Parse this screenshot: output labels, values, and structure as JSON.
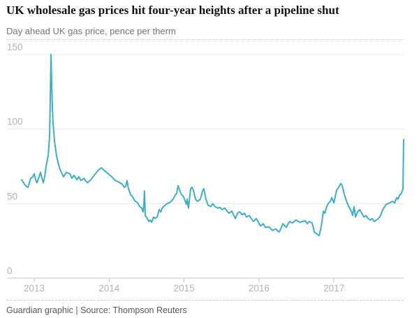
{
  "header": {
    "title": "UK wholesale gas prices hit four-year heights after a pipeline shut",
    "subtitle": "Day ahead UK gas price, pence per therm"
  },
  "footer": {
    "source": "Guardian graphic | Source: Thompson Reuters"
  },
  "colors": {
    "line": "#3cafc8",
    "title": "#121212",
    "subtitle": "#767676",
    "axis_label": "#b3b3b3",
    "gridline": "#ebebeb",
    "axis_line": "#c6c6c6",
    "source_text": "#595959"
  },
  "chart_data": {
    "type": "line",
    "title": "UK wholesale gas prices hit four-year heights after a pipeline shut",
    "subtitle": "Day ahead UK gas price, pence per therm",
    "series_name": "Day ahead UK gas price",
    "unit": "pence per therm",
    "x_ticks": [
      2013,
      2014,
      2015,
      2016,
      2017
    ],
    "y_ticks": [
      0,
      50,
      100,
      150
    ],
    "xlim": [
      2012.82,
      2017.97
    ],
    "ylim": [
      0,
      155
    ],
    "grid": "horizontal",
    "legend": "none",
    "points": [
      [
        2012.832,
        66
      ],
      [
        2012.87,
        63
      ],
      [
        2012.897,
        61.5
      ],
      [
        2012.916,
        61
      ],
      [
        2012.953,
        67
      ],
      [
        2012.981,
        68
      ],
      [
        2013.0,
        70
      ],
      [
        2013.019,
        66
      ],
      [
        2013.037,
        64
      ],
      [
        2013.065,
        68
      ],
      [
        2013.084,
        71
      ],
      [
        2013.103,
        67
      ],
      [
        2013.121,
        64
      ],
      [
        2013.14,
        68
      ],
      [
        2013.158,
        75
      ],
      [
        2013.177,
        80
      ],
      [
        2013.186,
        82
      ],
      [
        2013.205,
        95
      ],
      [
        2013.214,
        120
      ],
      [
        2013.224,
        150
      ],
      [
        2013.233,
        130
      ],
      [
        2013.242,
        115
      ],
      [
        2013.252,
        104
      ],
      [
        2013.27,
        92
      ],
      [
        2013.298,
        82
      ],
      [
        2013.336,
        74
      ],
      [
        2013.363,
        71
      ],
      [
        2013.391,
        68
      ],
      [
        2013.429,
        71
      ],
      [
        2013.475,
        70
      ],
      [
        2013.503,
        67
      ],
      [
        2013.531,
        69
      ],
      [
        2013.569,
        66
      ],
      [
        2013.596,
        68
      ],
      [
        2013.624,
        65.5
      ],
      [
        2013.662,
        67
      ],
      [
        2013.708,
        64
      ],
      [
        2013.755,
        66
      ],
      [
        2013.801,
        69
      ],
      [
        2013.848,
        72
      ],
      [
        2013.895,
        74
      ],
      [
        2013.941,
        72
      ],
      [
        2013.988,
        70
      ],
      [
        2014.034,
        68
      ],
      [
        2014.081,
        65.5
      ],
      [
        2014.128,
        64.5
      ],
      [
        2014.174,
        63
      ],
      [
        2014.202,
        61
      ],
      [
        2014.221,
        61.5
      ],
      [
        2014.239,
        65.5
      ],
      [
        2014.258,
        60
      ],
      [
        2014.286,
        56
      ],
      [
        2014.314,
        54.5
      ],
      [
        2014.342,
        52
      ],
      [
        2014.379,
        50.5
      ],
      [
        2014.407,
        48
      ],
      [
        2014.435,
        47
      ],
      [
        2014.454,
        44.5
      ],
      [
        2014.463,
        50
      ],
      [
        2014.472,
        58.5
      ],
      [
        2014.482,
        42
      ],
      [
        2014.51,
        40
      ],
      [
        2014.528,
        38
      ],
      [
        2014.547,
        39
      ],
      [
        2014.566,
        37.5
      ],
      [
        2014.594,
        41
      ],
      [
        2014.612,
        40
      ],
      [
        2014.64,
        41
      ],
      [
        2014.668,
        46
      ],
      [
        2014.687,
        44.5
      ],
      [
        2014.715,
        47.5
      ],
      [
        2014.761,
        49.5
      ],
      [
        2014.798,
        50.5
      ],
      [
        2014.827,
        51.5
      ],
      [
        2014.855,
        53
      ],
      [
        2014.873,
        55
      ],
      [
        2014.901,
        57
      ],
      [
        2014.92,
        62
      ],
      [
        2014.948,
        58
      ],
      [
        2014.966,
        56
      ],
      [
        2014.994,
        54.5
      ],
      [
        2015.013,
        52
      ],
      [
        2015.031,
        49.5
      ],
      [
        2015.041,
        53
      ],
      [
        2015.059,
        47
      ],
      [
        2015.087,
        60
      ],
      [
        2015.106,
        61
      ],
      [
        2015.124,
        59
      ],
      [
        2015.152,
        53
      ],
      [
        2015.18,
        51.5
      ],
      [
        2015.218,
        53
      ],
      [
        2015.246,
        58.5
      ],
      [
        2015.264,
        60
      ],
      [
        2015.292,
        53
      ],
      [
        2015.32,
        49
      ],
      [
        2015.357,
        48
      ],
      [
        2015.385,
        50
      ],
      [
        2015.413,
        48
      ],
      [
        2015.451,
        47
      ],
      [
        2015.479,
        47.5
      ],
      [
        2015.507,
        46
      ],
      [
        2015.544,
        47
      ],
      [
        2015.572,
        45
      ],
      [
        2015.6,
        43.5
      ],
      [
        2015.637,
        45
      ],
      [
        2015.665,
        42
      ],
      [
        2015.684,
        40
      ],
      [
        2015.712,
        43.5
      ],
      [
        2015.74,
        44.5
      ],
      [
        2015.777,
        42.5
      ],
      [
        2015.805,
        43.5
      ],
      [
        2015.833,
        41
      ],
      [
        2015.87,
        42
      ],
      [
        2015.898,
        40
      ],
      [
        2015.926,
        38
      ],
      [
        2015.964,
        40
      ],
      [
        2015.992,
        37.5
      ],
      [
        2016.02,
        35
      ],
      [
        2016.057,
        36.5
      ],
      [
        2016.085,
        34
      ],
      [
        2016.131,
        34.5
      ],
      [
        2016.178,
        32
      ],
      [
        2016.225,
        33
      ],
      [
        2016.253,
        31.5
      ],
      [
        2016.271,
        31
      ],
      [
        2016.299,
        34
      ],
      [
        2016.318,
        36.5
      ],
      [
        2016.346,
        35
      ],
      [
        2016.364,
        34
      ],
      [
        2016.392,
        37
      ],
      [
        2016.411,
        38
      ],
      [
        2016.439,
        37
      ],
      [
        2016.457,
        37.5
      ],
      [
        2016.495,
        39
      ],
      [
        2016.523,
        38
      ],
      [
        2016.551,
        37.5
      ],
      [
        2016.579,
        38
      ],
      [
        2016.616,
        38.5
      ],
      [
        2016.644,
        36.5
      ],
      [
        2016.672,
        38
      ],
      [
        2016.709,
        37
      ],
      [
        2016.737,
        31
      ],
      [
        2016.775,
        29.5
      ],
      [
        2016.803,
        28.5
      ],
      [
        2016.831,
        35
      ],
      [
        2016.859,
        45
      ],
      [
        2016.877,
        43.5
      ],
      [
        2016.905,
        48
      ],
      [
        2016.924,
        50
      ],
      [
        2016.952,
        51.5
      ],
      [
        2016.971,
        54
      ],
      [
        2016.999,
        50.5
      ],
      [
        2017.036,
        59
      ],
      [
        2017.064,
        61
      ],
      [
        2017.092,
        63.5
      ],
      [
        2017.111,
        62
      ],
      [
        2017.139,
        56
      ],
      [
        2017.176,
        50.5
      ],
      [
        2017.204,
        47.5
      ],
      [
        2017.232,
        45
      ],
      [
        2017.25,
        42
      ],
      [
        2017.269,
        48
      ],
      [
        2017.288,
        41
      ],
      [
        2017.316,
        44.5
      ],
      [
        2017.344,
        46
      ],
      [
        2017.372,
        43.5
      ],
      [
        2017.399,
        41
      ],
      [
        2017.427,
        42
      ],
      [
        2017.455,
        40
      ],
      [
        2017.483,
        39
      ],
      [
        2017.511,
        40
      ],
      [
        2017.539,
        38
      ],
      [
        2017.567,
        39
      ],
      [
        2017.595,
        40
      ],
      [
        2017.623,
        42
      ],
      [
        2017.651,
        46
      ],
      [
        2017.697,
        49.5
      ],
      [
        2017.744,
        50.5
      ],
      [
        2017.781,
        51.5
      ],
      [
        2017.809,
        50.5
      ],
      [
        2017.837,
        54
      ],
      [
        2017.855,
        53
      ],
      [
        2017.874,
        55.5
      ],
      [
        2017.902,
        57
      ],
      [
        2017.921,
        60
      ],
      [
        2017.93,
        93
      ]
    ]
  }
}
